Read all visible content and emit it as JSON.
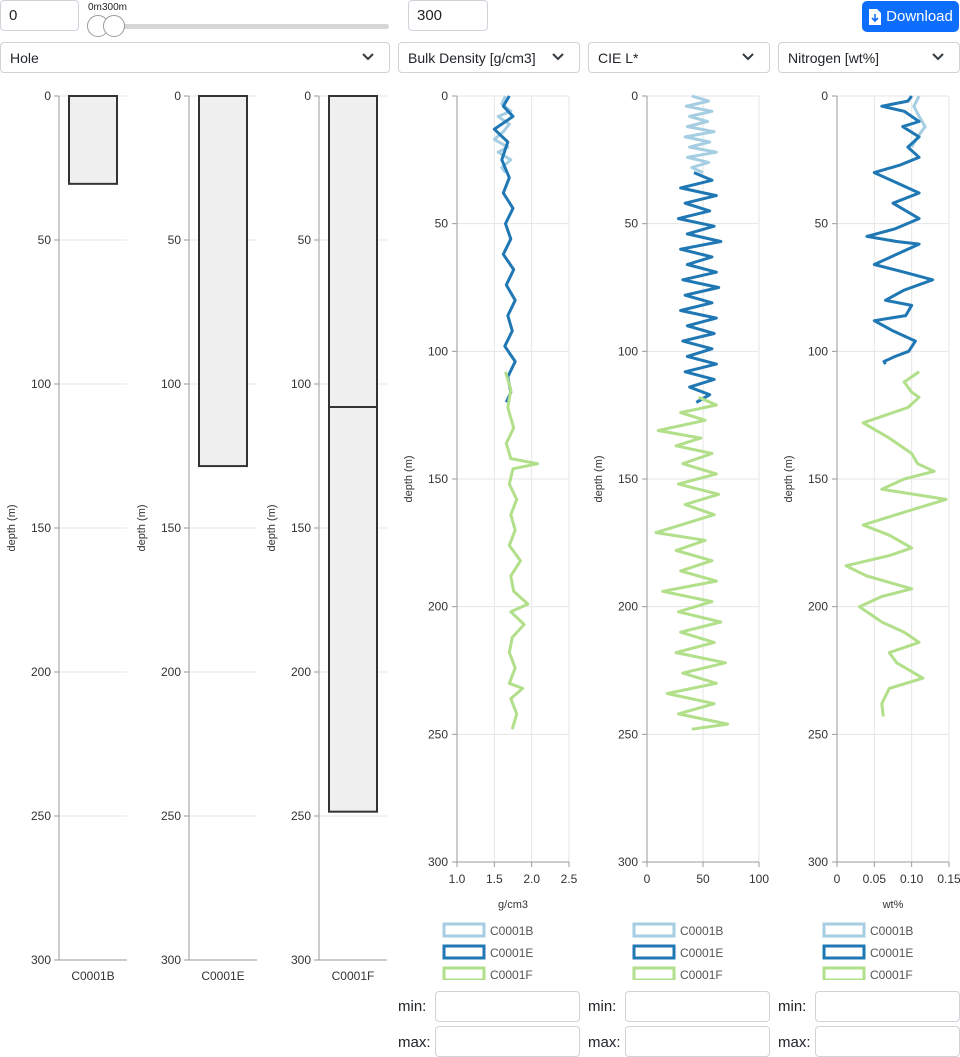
{
  "range": {
    "min_value": "0",
    "max_value": "300",
    "slider_min_label": "0m",
    "slider_max_label": "300m",
    "slider_low": 0,
    "slider_high": 300,
    "slider_extent": 300
  },
  "download_label": "Download",
  "selects": {
    "hole": "Hole",
    "col1": "Bulk Density [g/cm3]",
    "col2": "CIE L*",
    "col3": "Nitrogen [wt%]"
  },
  "y_axis": {
    "label": "depth (m)",
    "ticks": [
      0,
      50,
      100,
      150,
      200,
      250,
      300
    ],
    "range": [
      0,
      300
    ]
  },
  "holes": [
    {
      "name": "C0001B",
      "top": 0,
      "bottom": 30.5,
      "sections": []
    },
    {
      "name": "C0001E",
      "top": 0,
      "bottom": 128.5,
      "sections": []
    },
    {
      "name": "C0001F",
      "top": 0,
      "bottom": 248.5,
      "sections": [
        108
      ]
    }
  ],
  "chart_data": [
    {
      "type": "line",
      "title": "Bulk Density [g/cm3]",
      "xlabel": "g/cm3",
      "ylabel": "depth (m)",
      "xlim": [
        1.0,
        2.5
      ],
      "x_ticks": [
        "1.0",
        "1.5",
        "2.0",
        "2.5"
      ],
      "x_tick_values": [
        1.0,
        1.5,
        2.0,
        2.5
      ],
      "ylim": [
        0,
        300
      ],
      "y_inverted": true,
      "grid": true,
      "legend_position": "bottom",
      "series": [
        {
          "name": "C0001B",
          "color": "#a6cee3",
          "depth_range": [
            0,
            30
          ],
          "points": [
            [
              1.65,
              0
            ],
            [
              1.6,
              3
            ],
            [
              1.72,
              6
            ],
            [
              1.55,
              8
            ],
            [
              1.7,
              11
            ],
            [
              1.62,
              14
            ],
            [
              1.5,
              17
            ],
            [
              1.68,
              20
            ],
            [
              1.55,
              22
            ],
            [
              1.72,
              25
            ],
            [
              1.6,
              28
            ],
            [
              1.65,
              30
            ]
          ]
        },
        {
          "name": "C0001E",
          "color": "#1f78b4",
          "depth_range": [
            0,
            120
          ],
          "points": [
            [
              1.7,
              0
            ],
            [
              1.62,
              4
            ],
            [
              1.75,
              8
            ],
            [
              1.5,
              13
            ],
            [
              1.68,
              18
            ],
            [
              1.6,
              25
            ],
            [
              1.7,
              32
            ],
            [
              1.62,
              38
            ],
            [
              1.75,
              44
            ],
            [
              1.65,
              50
            ],
            [
              1.72,
              56
            ],
            [
              1.62,
              62
            ],
            [
              1.76,
              68
            ],
            [
              1.66,
              74
            ],
            [
              1.78,
              80
            ],
            [
              1.68,
              86
            ],
            [
              1.74,
              92
            ],
            [
              1.64,
              98
            ],
            [
              1.78,
              104
            ],
            [
              1.68,
              110
            ],
            [
              1.72,
              116
            ],
            [
              1.66,
              120
            ]
          ]
        },
        {
          "name": "C0001F",
          "color": "#b2df8a",
          "depth_range": [
            108,
            248
          ],
          "points": [
            [
              1.65,
              108
            ],
            [
              1.72,
              115
            ],
            [
              1.68,
              122
            ],
            [
              1.76,
              130
            ],
            [
              1.66,
              136
            ],
            [
              1.72,
              142
            ],
            [
              2.08,
              144
            ],
            [
              1.75,
              146
            ],
            [
              1.7,
              152
            ],
            [
              1.8,
              158
            ],
            [
              1.72,
              164
            ],
            [
              1.78,
              170
            ],
            [
              1.7,
              176
            ],
            [
              1.85,
              182
            ],
            [
              1.72,
              188
            ],
            [
              1.76,
              194
            ],
            [
              1.95,
              199
            ],
            [
              1.72,
              202
            ],
            [
              1.9,
              207
            ],
            [
              1.74,
              212
            ],
            [
              1.7,
              218
            ],
            [
              1.78,
              224
            ],
            [
              1.7,
              230
            ],
            [
              1.88,
              232
            ],
            [
              1.72,
              236
            ],
            [
              1.8,
              242
            ],
            [
              1.74,
              248
            ]
          ]
        }
      ]
    },
    {
      "type": "line",
      "title": "CIE L*",
      "xlabel": "",
      "ylabel": "depth (m)",
      "xlim": [
        0,
        100
      ],
      "x_ticks": [
        "0",
        "50",
        "100"
      ],
      "x_tick_values": [
        0,
        50,
        100
      ],
      "ylim": [
        0,
        300
      ],
      "y_inverted": true,
      "grid": true,
      "legend_position": "bottom",
      "series": [
        {
          "name": "C0001B",
          "color": "#a6cee3",
          "depth_range": [
            0,
            30
          ],
          "points": [
            [
              40,
              0
            ],
            [
              55,
              2
            ],
            [
              35,
              4
            ],
            [
              58,
              6
            ],
            [
              38,
              8
            ],
            [
              54,
              10
            ],
            [
              36,
              12
            ],
            [
              60,
              14
            ],
            [
              34,
              16
            ],
            [
              56,
              18
            ],
            [
              38,
              20
            ],
            [
              62,
              22
            ],
            [
              36,
              24
            ],
            [
              55,
              26
            ],
            [
              40,
              28
            ],
            [
              50,
              30
            ]
          ]
        },
        {
          "name": "C0001E",
          "color": "#1f78b4",
          "depth_range": [
            30,
            120
          ],
          "points": [
            [
              42,
              30
            ],
            [
              58,
              33
            ],
            [
              30,
              36
            ],
            [
              62,
              39
            ],
            [
              34,
              42
            ],
            [
              56,
              45
            ],
            [
              28,
              48
            ],
            [
              60,
              51
            ],
            [
              36,
              54
            ],
            [
              66,
              57
            ],
            [
              30,
              60
            ],
            [
              58,
              63
            ],
            [
              36,
              66
            ],
            [
              62,
              69
            ],
            [
              32,
              72
            ],
            [
              64,
              75
            ],
            [
              34,
              78
            ],
            [
              58,
              81
            ],
            [
              30,
              84
            ],
            [
              62,
              87
            ],
            [
              36,
              90
            ],
            [
              60,
              93
            ],
            [
              32,
              96
            ],
            [
              58,
              99
            ],
            [
              36,
              102
            ],
            [
              62,
              105
            ],
            [
              34,
              108
            ],
            [
              60,
              111
            ],
            [
              38,
              114
            ],
            [
              56,
              117
            ],
            [
              44,
              120
            ]
          ]
        },
        {
          "name": "C0001F",
          "color": "#b2df8a",
          "depth_range": [
            118,
            248
          ],
          "points": [
            [
              46,
              118
            ],
            [
              62,
              121
            ],
            [
              30,
              124
            ],
            [
              52,
              127
            ],
            [
              10,
              131
            ],
            [
              48,
              134
            ],
            [
              26,
              137
            ],
            [
              58,
              140
            ],
            [
              32,
              144
            ],
            [
              62,
              148
            ],
            [
              28,
              152
            ],
            [
              64,
              156
            ],
            [
              34,
              160
            ],
            [
              60,
              164
            ],
            [
              8,
              171
            ],
            [
              52,
              174
            ],
            [
              26,
              178
            ],
            [
              58,
              182
            ],
            [
              30,
              186
            ],
            [
              62,
              190
            ],
            [
              14,
              194
            ],
            [
              58,
              198
            ],
            [
              28,
              202
            ],
            [
              66,
              206
            ],
            [
              30,
              210
            ],
            [
              60,
              214
            ],
            [
              26,
              218
            ],
            [
              70,
              222
            ],
            [
              32,
              226
            ],
            [
              62,
              230
            ],
            [
              18,
              234
            ],
            [
              60,
              238
            ],
            [
              28,
              242
            ],
            [
              72,
              246
            ],
            [
              40,
              248
            ]
          ]
        }
      ]
    },
    {
      "type": "line",
      "title": "Nitrogen [wt%]",
      "xlabel": "wt%",
      "ylabel": "depth (m)",
      "xlim": [
        0,
        0.15
      ],
      "x_ticks": [
        "0",
        "0.05",
        "0.10",
        "0.15"
      ],
      "x_tick_values": [
        0,
        0.05,
        0.1,
        0.15
      ],
      "ylim": [
        0,
        300
      ],
      "y_inverted": true,
      "grid": true,
      "legend_position": "bottom",
      "series": [
        {
          "name": "C0001B",
          "color": "#a6cee3",
          "depth_range": [
            0,
            20
          ],
          "points": [
            [
              0.11,
              0
            ],
            [
              0.103,
              4
            ],
            [
              0.11,
              8
            ],
            [
              0.118,
              12
            ],
            [
              0.108,
              16
            ],
            [
              0.1,
              20
            ]
          ]
        },
        {
          "name": "C0001E",
          "color": "#1f78b4",
          "depth_range": [
            0,
            105
          ],
          "points": [
            [
              0.1,
              0
            ],
            [
              0.095,
              2
            ],
            [
              0.06,
              4
            ],
            [
              0.09,
              6
            ],
            [
              0.11,
              10
            ],
            [
              0.088,
              12
            ],
            [
              0.11,
              16
            ],
            [
              0.095,
              20
            ],
            [
              0.11,
              24
            ],
            [
              0.085,
              27
            ],
            [
              0.05,
              30
            ],
            [
              0.08,
              34
            ],
            [
              0.11,
              38
            ],
            [
              0.075,
              42
            ],
            [
              0.11,
              48
            ],
            [
              0.078,
              52
            ],
            [
              0.04,
              55
            ],
            [
              0.08,
              57
            ],
            [
              0.11,
              58
            ],
            [
              0.08,
              62
            ],
            [
              0.05,
              66
            ],
            [
              0.09,
              69
            ],
            [
              0.128,
              72
            ],
            [
              0.09,
              76
            ],
            [
              0.065,
              80
            ],
            [
              0.1,
              82
            ],
            [
              0.092,
              86
            ],
            [
              0.05,
              88
            ],
            [
              0.075,
              92
            ],
            [
              0.105,
              96
            ],
            [
              0.096,
              100
            ],
            [
              0.078,
              102
            ],
            [
              0.063,
              104
            ],
            [
              0.065,
              105
            ]
          ]
        },
        {
          "name": "C0001F",
          "color": "#b2df8a",
          "depth_range": [
            108,
            243
          ],
          "points": [
            [
              0.11,
              108
            ],
            [
              0.09,
              112
            ],
            [
              0.1,
              116
            ],
            [
              0.11,
              118
            ],
            [
              0.095,
              122
            ],
            [
              0.035,
              128
            ],
            [
              0.07,
              134
            ],
            [
              0.1,
              140
            ],
            [
              0.108,
              144
            ],
            [
              0.13,
              147
            ],
            [
              0.09,
              150
            ],
            [
              0.06,
              154
            ],
            [
              0.146,
              158
            ],
            [
              0.09,
              163
            ],
            [
              0.035,
              168
            ],
            [
              0.07,
              172
            ],
            [
              0.1,
              177
            ],
            [
              0.07,
              180
            ],
            [
              0.012,
              184
            ],
            [
              0.04,
              188
            ],
            [
              0.1,
              193
            ],
            [
              0.06,
              196
            ],
            [
              0.03,
              200
            ],
            [
              0.06,
              206
            ],
            [
              0.09,
              210
            ],
            [
              0.11,
              214
            ],
            [
              0.07,
              218
            ],
            [
              0.08,
              222
            ],
            [
              0.115,
              228
            ],
            [
              0.07,
              232
            ],
            [
              0.06,
              238
            ],
            [
              0.062,
              243
            ]
          ]
        }
      ]
    }
  ],
  "filters": {
    "min_label": "min:",
    "max_label": "max:"
  }
}
